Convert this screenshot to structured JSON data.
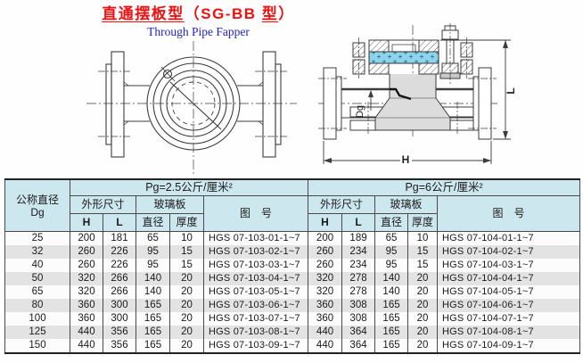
{
  "header": {
    "title_parts": [
      "直通摆板型",
      "（SG-BB ",
      "型",
      "）"
    ],
    "title_color": "#f01010",
    "subtitle": "Through Pipe Fapper",
    "subtitle_color": "#2323cc"
  },
  "drawings": {
    "glass_fill": "#8fd2ec",
    "front_view_name": "flanged sight-glass front view",
    "section_view_name": "flanged sight-glass cross-section view",
    "labels": {
      "dg": "Dg",
      "h": "H",
      "l": "L"
    }
  },
  "table": {
    "colors": {
      "header_bg": "#cde7ef",
      "alt_row_bg": "#e3e3e3"
    },
    "diameter_header": {
      "line1": "公称直径",
      "line2": "Dg"
    },
    "sections": [
      {
        "pressure": "Pg=2.5公斤/厘米²",
        "dims": "外形尺寸",
        "glass": "玻璃板",
        "h": "H",
        "l": "L",
        "diameter": "直径",
        "thickness": "厚度",
        "figure": "图　号"
      },
      {
        "pressure": "Pg=6公斤/厘米²",
        "dims": "外形尺寸",
        "glass": "玻璃板",
        "h": "H",
        "l": "L",
        "diameter": "直径",
        "thickness": "厚度",
        "figure": "图　号"
      }
    ],
    "rows": [
      {
        "dg": "25",
        "p25": {
          "h": "200",
          "l": "181",
          "d": "65",
          "t": "10",
          "no": "HGS 07-103-01-1~7"
        },
        "p6": {
          "h": "200",
          "l": "189",
          "d": "65",
          "t": "10",
          "no": "HGS 07-104-01-1~7"
        }
      },
      {
        "dg": "32",
        "p25": {
          "h": "260",
          "l": "226",
          "d": "95",
          "t": "15",
          "no": "HGS 07-103-02-1~7"
        },
        "p6": {
          "h": "260",
          "l": "234",
          "d": "95",
          "t": "15",
          "no": "HGS 07-104-02-1~7"
        }
      },
      {
        "dg": "40",
        "p25": {
          "h": "260",
          "l": "226",
          "d": "95",
          "t": "15",
          "no": "HGS 07-103-03-1~7"
        },
        "p6": {
          "h": "260",
          "l": "234",
          "d": "95",
          "t": "15",
          "no": "HGS 07-104-03-1~7"
        }
      },
      {
        "dg": "50",
        "p25": {
          "h": "320",
          "l": "266",
          "d": "140",
          "t": "20",
          "no": "HGS 07-103-04-1~7"
        },
        "p6": {
          "h": "320",
          "l": "278",
          "d": "140",
          "t": "20",
          "no": "HGS 07-104-04-1~7"
        }
      },
      {
        "dg": "65",
        "p25": {
          "h": "320",
          "l": "266",
          "d": "140",
          "t": "20",
          "no": "HGS 07-103-05-1~7"
        },
        "p6": {
          "h": "320",
          "l": "278",
          "d": "140",
          "t": "20",
          "no": "HGS 07-104-05-1~7"
        }
      },
      {
        "dg": "80",
        "p25": {
          "h": "360",
          "l": "300",
          "d": "165",
          "t": "20",
          "no": "HGS 07-103-06-1~7"
        },
        "p6": {
          "h": "360",
          "l": "308",
          "d": "165",
          "t": "20",
          "no": "HGS 07-104-06-1~7"
        }
      },
      {
        "dg": "100",
        "p25": {
          "h": "360",
          "l": "300",
          "d": "165",
          "t": "20",
          "no": "HGS 07-103-07-1~7"
        },
        "p6": {
          "h": "360",
          "l": "308",
          "d": "165",
          "t": "20",
          "no": "HGS 07-104-07-1~7"
        }
      },
      {
        "dg": "125",
        "p25": {
          "h": "440",
          "l": "356",
          "d": "165",
          "t": "20",
          "no": "HGS 07-103-08-1~7"
        },
        "p6": {
          "h": "440",
          "l": "364",
          "d": "165",
          "t": "20",
          "no": "HGS 07-104-08-1~7"
        }
      },
      {
        "dg": "150",
        "p25": {
          "h": "440",
          "l": "356",
          "d": "165",
          "t": "20",
          "no": "HGS 07-103-09-1~7"
        },
        "p6": {
          "h": "440",
          "l": "364",
          "d": "165",
          "t": "20",
          "no": "HGS 07-104-09-1~7"
        }
      }
    ]
  }
}
